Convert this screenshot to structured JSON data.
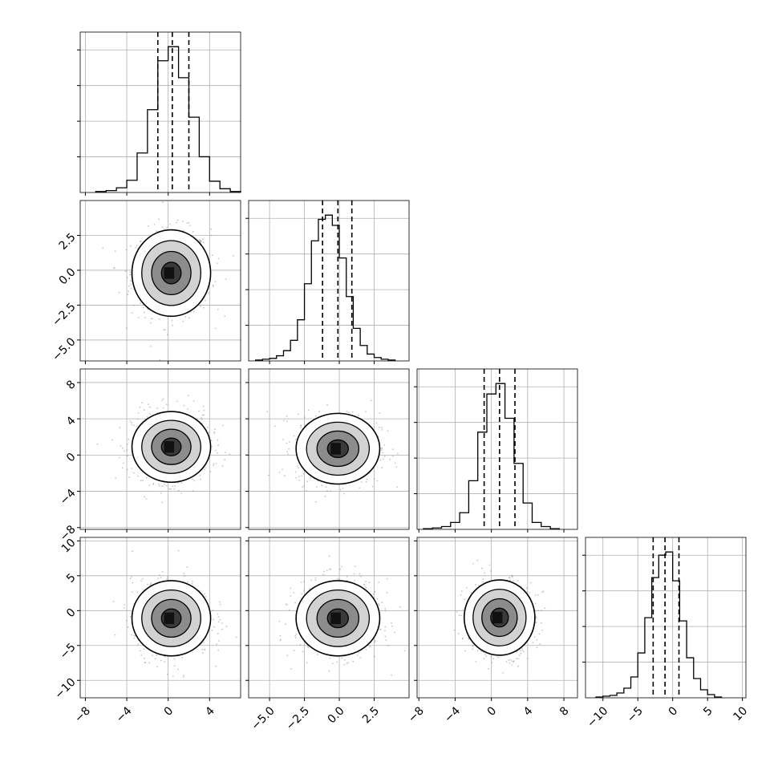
{
  "chart_data": {
    "type": "corner",
    "title": "",
    "dimensions": 4,
    "grid": true,
    "variables": [
      {
        "label": "",
        "range": [
          -8.5,
          7
        ],
        "ticks": [
          -8,
          -4,
          0,
          4
        ],
        "tick_labels": [
          "−8",
          "−4",
          "0",
          "4"
        ],
        "median": 0.4,
        "q16": -1.0,
        "q84": 2.0,
        "peak": 0.35
      },
      {
        "label": "",
        "range": [
          -6.5,
          5.0
        ],
        "ticks": [
          -5.0,
          -2.5,
          0.0,
          2.5
        ],
        "tick_labels": [
          "−5.0",
          "−2.5",
          "0.0",
          "2.5"
        ],
        "median": -0.1,
        "q16": -1.2,
        "q84": 0.9,
        "peak": -0.1
      },
      {
        "label": "",
        "range": [
          -8.2,
          9.5
        ],
        "ticks": [
          -8,
          -4,
          0,
          4,
          8
        ],
        "tick_labels": [
          "−8",
          "−4",
          "0",
          "4",
          "8"
        ],
        "median": 0.9,
        "q16": -0.8,
        "q84": 2.6,
        "peak": 0.9
      },
      {
        "label": "",
        "range": [
          -12.5,
          10.5
        ],
        "ticks": [
          -10,
          -5,
          0,
          5,
          10
        ],
        "tick_labels": [
          "−10",
          "−5",
          "0",
          "5",
          "10"
        ],
        "median": -1.1,
        "q16": -2.8,
        "q84": 0.9,
        "peak": -1.1
      }
    ],
    "histograms": [
      {
        "variable": 0,
        "bin_centers": [
          -6.5,
          -5.5,
          -4.5,
          -3.5,
          -2.5,
          -1.5,
          -0.5,
          0.5,
          1.5,
          2.5,
          3.5,
          4.5,
          5.5,
          6.5
        ],
        "values": [
          1,
          2,
          5,
          13,
          42,
          88,
          140,
          155,
          122,
          80,
          38,
          12,
          4,
          1
        ]
      },
      {
        "variable": 1,
        "bin_centers": [
          -5.75,
          -5.25,
          -4.75,
          -4.25,
          -3.75,
          -3.25,
          -2.75,
          -2.25,
          -1.75,
          -1.25,
          -0.75,
          -0.25,
          0.25,
          0.75,
          1.25,
          1.75,
          2.25,
          2.75,
          3.25,
          3.75
        ],
        "values": [
          1,
          2,
          3,
          6,
          12,
          24,
          48,
          90,
          140,
          165,
          170,
          158,
          120,
          75,
          38,
          18,
          8,
          4,
          2,
          1
        ]
      },
      {
        "variable": 2,
        "bin_centers": [
          -7.0,
          -6.0,
          -5.0,
          -4.0,
          -3.0,
          -2.0,
          -1.0,
          0.0,
          1.0,
          2.0,
          3.0,
          4.0,
          5.0,
          6.0,
          7.0
        ],
        "values": [
          1,
          2,
          4,
          10,
          24,
          70,
          140,
          195,
          210,
          160,
          95,
          38,
          10,
          4,
          1
        ]
      },
      {
        "variable": 3,
        "bin_centers": [
          -10.5,
          -9.5,
          -8.5,
          -7.5,
          -6.5,
          -5.5,
          -4.5,
          -3.5,
          -2.5,
          -1.5,
          -0.5,
          0.5,
          1.5,
          2.5,
          3.5,
          4.5,
          5.5,
          6.5
        ],
        "values": [
          1,
          2,
          3,
          6,
          12,
          26,
          56,
          100,
          150,
          178,
          182,
          146,
          96,
          50,
          24,
          10,
          4,
          1
        ]
      }
    ],
    "pairs": [
      {
        "x": 0,
        "y": 1,
        "center": [
          0.3,
          -0.2
        ],
        "sigma": [
          1.9,
          1.55
        ]
      },
      {
        "x": 0,
        "y": 2,
        "center": [
          0.3,
          0.9
        ],
        "sigma": [
          1.9,
          1.95
        ]
      },
      {
        "x": 1,
        "y": 2,
        "center": [
          -0.1,
          0.7
        ],
        "sigma": [
          1.5,
          1.95
        ]
      },
      {
        "x": 0,
        "y": 3,
        "center": [
          0.3,
          -1.1
        ],
        "sigma": [
          1.9,
          2.7
        ]
      },
      {
        "x": 1,
        "y": 3,
        "center": [
          -0.1,
          -1.1
        ],
        "sigma": [
          1.5,
          2.7
        ]
      },
      {
        "x": 2,
        "y": 3,
        "center": [
          0.9,
          -1.0
        ],
        "sigma": [
          1.95,
          2.7
        ]
      }
    ],
    "contour_levels_sigma": [
      0.5,
      1.0,
      1.5,
      2.0
    ],
    "colors": {
      "line": "#000000",
      "grid": "#b0b0b0",
      "points": "#808080",
      "density": "#000000"
    }
  }
}
